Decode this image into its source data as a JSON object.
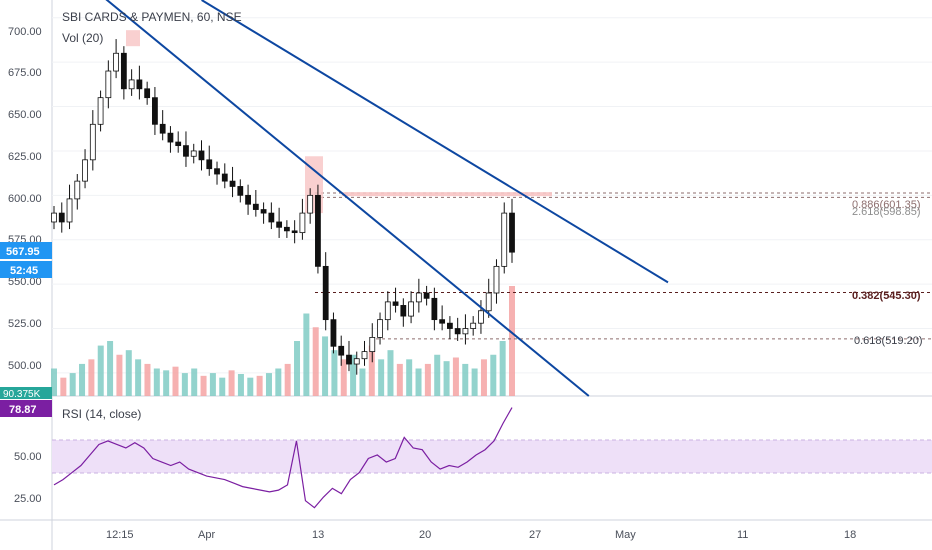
{
  "header": {
    "symbol_title": "SBI CARDS & PAYMEN, 60, NSE",
    "volume_label": "Vol (20)",
    "rsi_label": "RSI (14, close)"
  },
  "price_axis": {
    "ticks": [
      "700.00",
      "675.00",
      "650.00",
      "625.00",
      "600.00",
      "575.00",
      "550.00",
      "525.00",
      "500.00"
    ],
    "last_price": "567.95",
    "countdown": "52:45",
    "volume_value": "90.375K"
  },
  "rsi_axis": {
    "ticks": [
      "50.00",
      "25.00"
    ],
    "current": "78.87"
  },
  "time_axis": {
    "ticks": [
      "12:15",
      "Apr",
      "13",
      "20",
      "27",
      "May",
      "11",
      "18"
    ]
  },
  "fib_labels": {
    "f886": "0.886(601.35)",
    "f2618": "2.618(598.85)",
    "f382": "0.382(545.30)",
    "f618": "0.618(519.20)"
  },
  "colors": {
    "up": "#26a69a",
    "down": "#ef5350",
    "trendline": "#0d47a1",
    "rsi_line": "#7b1fa2",
    "rsi_band": "#e9dcf7",
    "last_price_tag": "#2196f3",
    "rsi_tag": "#7b1fa2",
    "volume_up": "#80cbc4",
    "volume_down": "#f4a3a3"
  },
  "chart_data": {
    "type": "candlestick",
    "price_range": [
      487,
      710
    ],
    "rsi_range": [
      15,
      85
    ],
    "price_series_close": [
      590,
      585,
      598,
      608,
      620,
      640,
      655,
      670,
      680,
      660,
      665,
      660,
      655,
      640,
      635,
      630,
      628,
      622,
      625,
      620,
      615,
      612,
      608,
      605,
      600,
      595,
      592,
      590,
      585,
      582,
      580,
      579,
      590,
      600,
      560,
      530,
      515,
      510,
      505,
      508,
      512,
      520,
      530,
      540,
      538,
      532,
      540,
      545,
      542,
      530,
      528,
      525,
      522,
      525,
      528,
      535,
      545,
      560,
      590,
      568
    ],
    "rsi_series": [
      35,
      38,
      42,
      46,
      52,
      58,
      60,
      58,
      56,
      59,
      56,
      50,
      48,
      46,
      48,
      44,
      42,
      40,
      39,
      38,
      36,
      34,
      33,
      32,
      31,
      32,
      35,
      60,
      26,
      22,
      28,
      33,
      30,
      38,
      42,
      50,
      52,
      48,
      50,
      62,
      56,
      55,
      48,
      44,
      46,
      45,
      48,
      52,
      55,
      60,
      70,
      79
    ],
    "volume_series": [
      30,
      20,
      25,
      35,
      40,
      55,
      60,
      45,
      50,
      40,
      35,
      30,
      28,
      32,
      25,
      30,
      22,
      25,
      20,
      28,
      24,
      20,
      22,
      25,
      30,
      35,
      60,
      90,
      75,
      65,
      50,
      40,
      45,
      30,
      55,
      40,
      50,
      35,
      40,
      30,
      35,
      45,
      38,
      42,
      35,
      30,
      40,
      45,
      60,
      120
    ],
    "fib_levels": [
      601.35,
      598.85,
      545.3,
      519.2
    ],
    "trendlines": [
      {
        "from": [
          0.06,
          711
        ],
        "to": [
          0.61,
          487
        ]
      },
      {
        "from": [
          0.17,
          710
        ],
        "to": [
          0.7,
          551
        ]
      }
    ]
  }
}
